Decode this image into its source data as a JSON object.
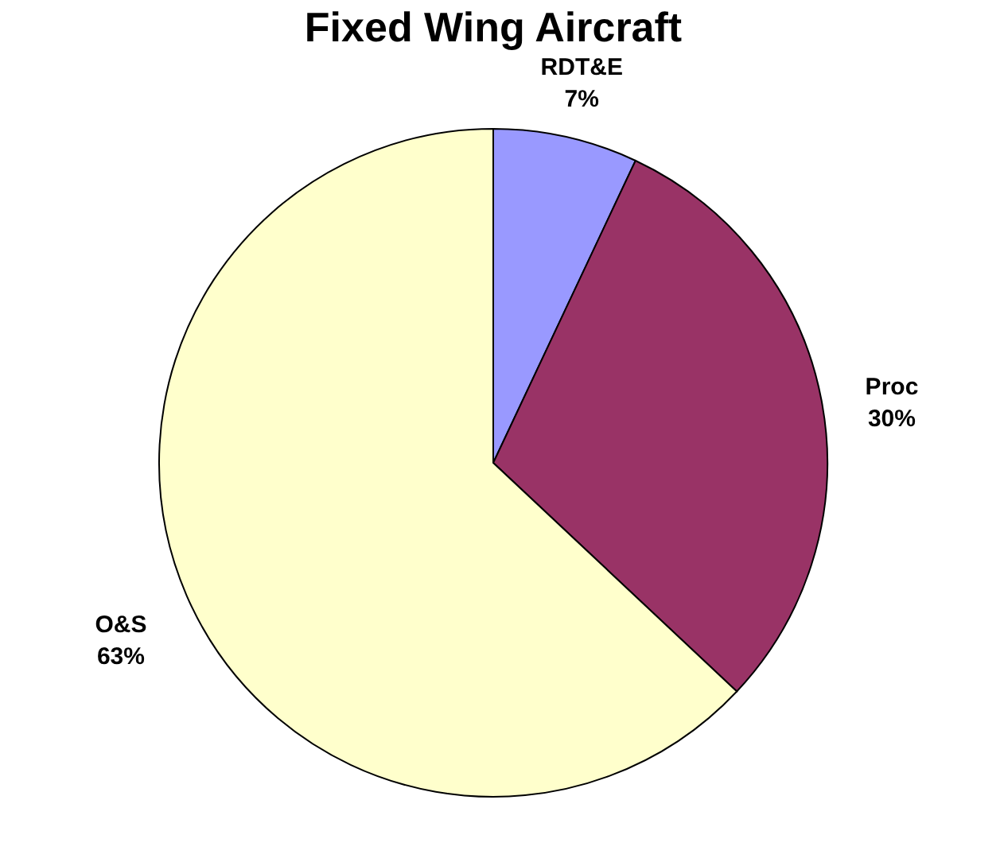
{
  "chart_data": {
    "type": "pie",
    "title": "Fixed Wing Aircraft",
    "categories": [
      "RDT&E",
      "Proc",
      "O&S"
    ],
    "values": [
      7,
      30,
      63
    ],
    "colors": [
      "#9999ff",
      "#993366",
      "#ffffcc"
    ],
    "value_labels": [
      "7%",
      "30%",
      "63%"
    ],
    "legend": false
  }
}
